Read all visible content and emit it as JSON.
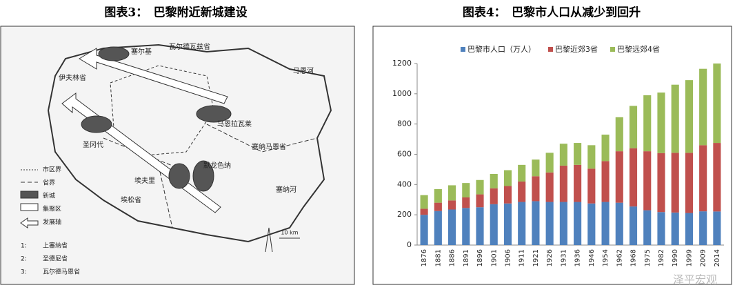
{
  "left": {
    "title": "图表3：　巴黎附近新城建设",
    "map_labels": [
      "塞尔基",
      "瓦尔德瓦兹省",
      "马恩河",
      "伊夫林省",
      "马恩拉瓦莱",
      "圣冈代",
      "塞纳马恩省",
      "埃夫里",
      "默龙色纳",
      "塞纳河",
      "埃松省"
    ],
    "legend": [
      "市区界",
      "省界",
      "新城",
      "集聚区",
      "发展轴"
    ],
    "notes": [
      {
        "num": "1:",
        "text": "上塞纳省"
      },
      {
        "num": "2:",
        "text": "圣德尼省"
      },
      {
        "num": "3:",
        "text": "瓦尔德马恩省"
      }
    ],
    "scale": "10 km"
  },
  "chart_data": {
    "type": "stacked_bar",
    "title": "图表4：　巴黎市人口从减少到回升",
    "categories": [
      "1876",
      "1881",
      "1886",
      "1891",
      "1896",
      "1901",
      "1906",
      "1911",
      "1921",
      "1926",
      "1931",
      "1936",
      "1946",
      "1954",
      "1962",
      "1968",
      "1975",
      "1982",
      "1990",
      "1999",
      "2009",
      "2014"
    ],
    "series": [
      {
        "name": "巴黎市人口（万人）",
        "color": "#4f81bd",
        "values": [
          200,
          225,
          235,
          245,
          250,
          270,
          275,
          285,
          290,
          285,
          285,
          285,
          275,
          285,
          280,
          255,
          230,
          218,
          215,
          212,
          223,
          222
        ]
      },
      {
        "name": "巴黎近郊3省",
        "color": "#c0504d",
        "values": [
          40,
          55,
          60,
          70,
          85,
          105,
          115,
          135,
          165,
          195,
          240,
          245,
          230,
          270,
          340,
          385,
          390,
          390,
          395,
          398,
          437,
          453
        ]
      },
      {
        "name": "巴黎远郊4省",
        "color": "#9bbb59",
        "values": [
          90,
          90,
          100,
          95,
          95,
          95,
          105,
          110,
          110,
          130,
          145,
          145,
          155,
          175,
          225,
          280,
          370,
          400,
          450,
          480,
          505,
          525
        ]
      }
    ],
    "ylim": [
      0,
      1200
    ],
    "yticks": [
      0,
      200,
      400,
      600,
      800,
      1000,
      1200
    ],
    "legend": "top"
  },
  "watermark": "泽平宏观"
}
